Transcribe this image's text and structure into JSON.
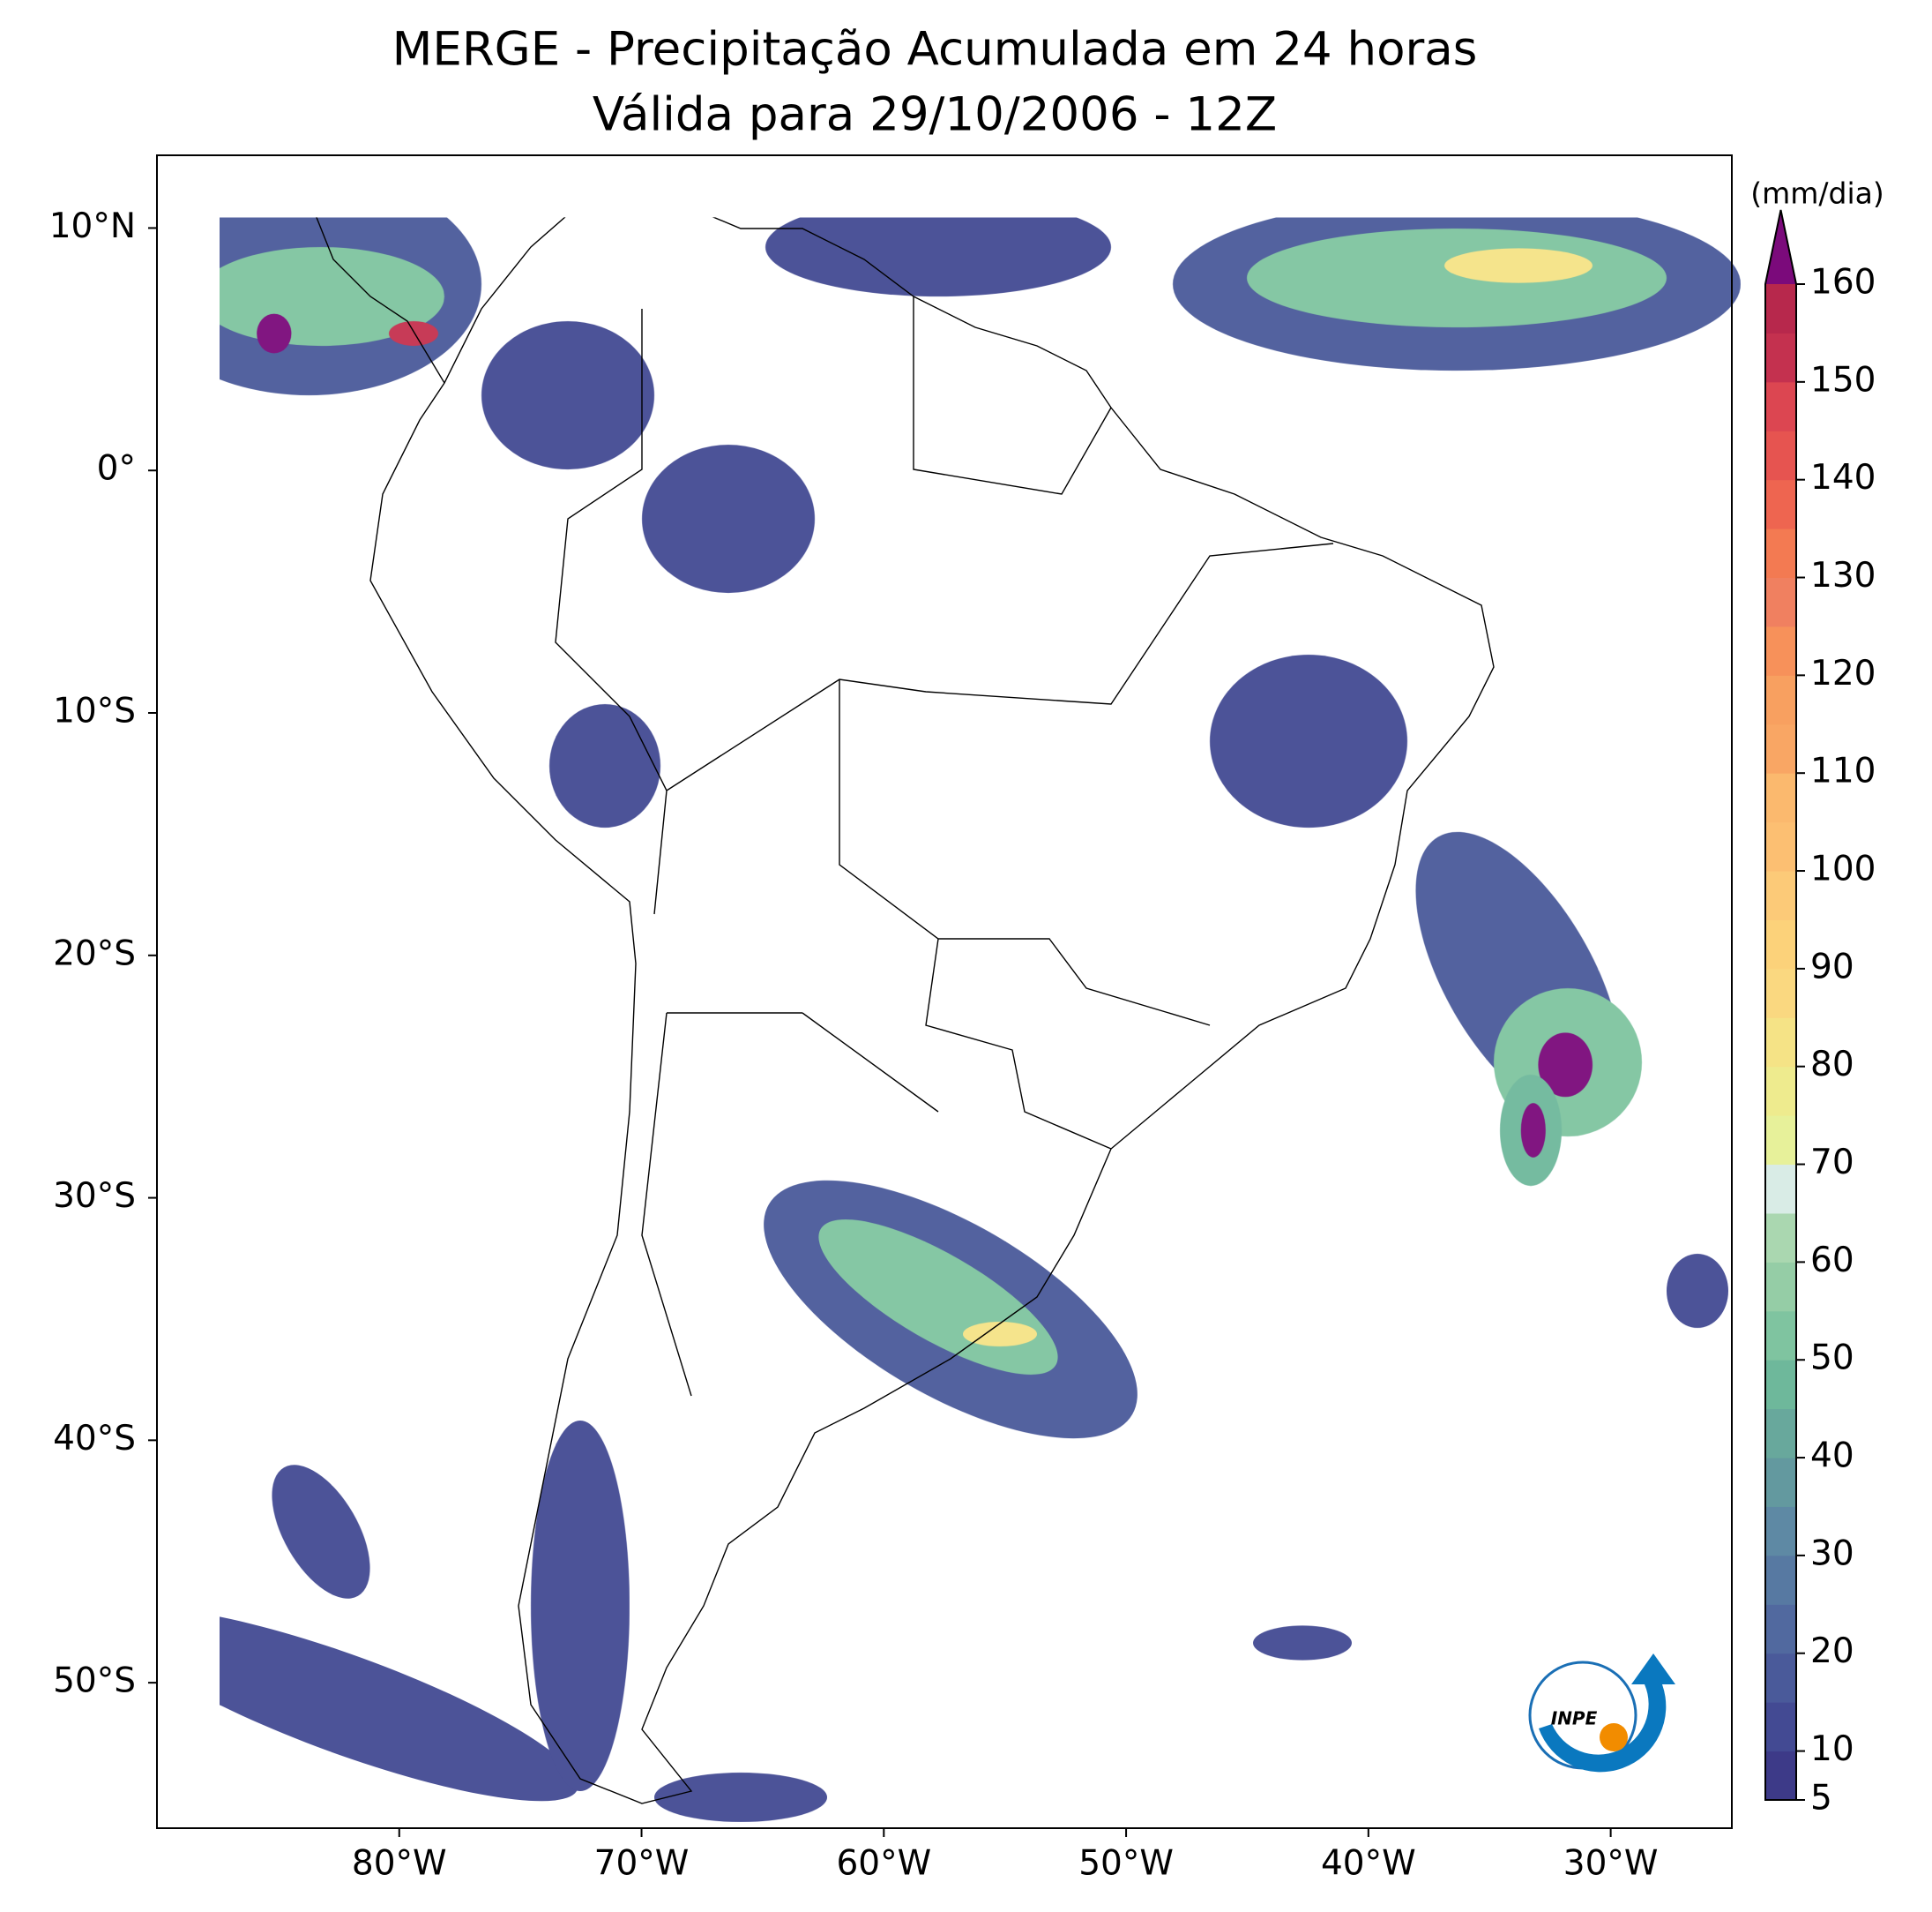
{
  "title": [
    "MERGE - Precipitação Acumulada em 24 horas",
    "Válida para 29/10/2006 - 12Z"
  ],
  "map": {
    "xlim": [
      -90,
      -25
    ],
    "ylim": [
      -56,
      13
    ],
    "xticks": [
      {
        "value": -80,
        "label": "80°W"
      },
      {
        "value": -70,
        "label": "70°W"
      },
      {
        "value": -60,
        "label": "60°W"
      },
      {
        "value": -50,
        "label": "50°W"
      },
      {
        "value": -40,
        "label": "40°W"
      },
      {
        "value": -30,
        "label": "30°W"
      }
    ],
    "yticks": [
      {
        "value": 10,
        "label": "10°N"
      },
      {
        "value": 0,
        "label": "0°"
      },
      {
        "value": -10,
        "label": "10°S"
      },
      {
        "value": -20,
        "label": "20°S"
      },
      {
        "value": -30,
        "label": "30°S"
      },
      {
        "value": -40,
        "label": "40°S"
      },
      {
        "value": -50,
        "label": "50°S"
      }
    ]
  },
  "colorbar": {
    "label": "(mm/dia)",
    "ticks": [
      5,
      10,
      20,
      30,
      40,
      50,
      60,
      70,
      80,
      90,
      100,
      110,
      120,
      130,
      140,
      150,
      160
    ],
    "colors": [
      "#3d3a88",
      "#434a93",
      "#4a5a9a",
      "#51699f",
      "#5779a2",
      "#5e89a4",
      "#63999f",
      "#68a89c",
      "#6eb89b",
      "#7fc4a0",
      "#95cda6",
      "#aad7b0",
      "#d9ece6",
      "#e7f19a",
      "#eeeb8e",
      "#f5e386",
      "#fad880",
      "#fcd27a",
      "#fcca78",
      "#fcbf72",
      "#fbb96e",
      "#f9a664",
      "#f8a060",
      "#f7915a",
      "#f08060",
      "#f37a52",
      "#ee6550",
      "#e65450",
      "#dc4651",
      "#c4314f",
      "#b7284c"
    ],
    "extend_color": "#7b0a7b"
  },
  "logo": "INPE"
}
